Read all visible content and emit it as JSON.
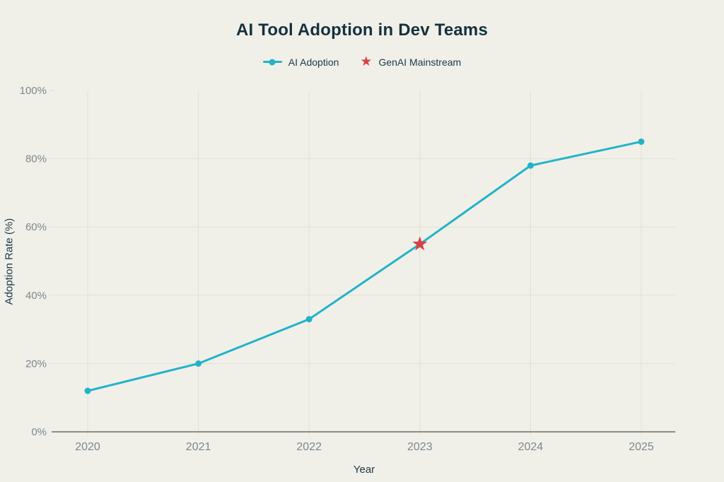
{
  "chart_data": {
    "type": "line",
    "title": "AI Tool Adoption in Dev Teams",
    "xlabel": "Year",
    "ylabel": "Adoption Rate (%)",
    "categories": [
      "2020",
      "2021",
      "2022",
      "2023",
      "2024",
      "2025"
    ],
    "series": [
      {
        "name": "AI Adoption",
        "values": [
          12,
          20,
          33,
          55,
          78,
          85
        ],
        "color": "#23b3c9",
        "marker": "circle"
      }
    ],
    "annotations": [
      {
        "name": "GenAI Mainstream",
        "category": "2023",
        "value": 55,
        "marker": "star",
        "color": "#d6424a"
      }
    ],
    "ylim": [
      0,
      100
    ],
    "yticks": [
      {
        "value": 0,
        "label": "0%"
      },
      {
        "value": 20,
        "label": "20%"
      },
      {
        "value": 40,
        "label": "40%"
      },
      {
        "value": 60,
        "label": "60%"
      },
      {
        "value": 80,
        "label": "80%"
      },
      {
        "value": 100,
        "label": "100%"
      }
    ],
    "grid": {
      "vertical": true,
      "horizontal": true
    },
    "legend": {
      "position": "top"
    }
  },
  "colors": {
    "background": "#f0f0e9",
    "title": "#14313e",
    "axis_label": "#1c3746",
    "tick_label": "#7d878c",
    "axis_line": "#8c8c8c",
    "grid_line": "#dfe0d7"
  }
}
